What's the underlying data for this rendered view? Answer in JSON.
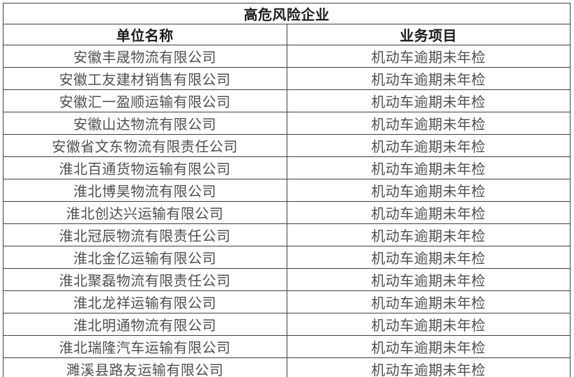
{
  "table": {
    "title": "高危风险企业",
    "columns": [
      "单位名称",
      "业务项目"
    ],
    "rows": [
      {
        "name": "安徽丰晟物流有限公司",
        "project": "机动车逾期未年检"
      },
      {
        "name": "安徽工友建材销售有限公司",
        "project": "机动车逾期未年检"
      },
      {
        "name": "安徽汇一盈顺运输有限公司",
        "project": "机动车逾期未年检"
      },
      {
        "name": "安徽山达物流有限公司",
        "project": "机动车逾期未年检"
      },
      {
        "name": "安徽省文东物流有限责任公司",
        "project": "机动车逾期未年检"
      },
      {
        "name": "淮北百通货物运输有限公司",
        "project": "机动车逾期未年检"
      },
      {
        "name": "淮北博昊物流有限公司",
        "project": "机动车逾期未年检"
      },
      {
        "name": "淮北创达兴运输有限公司",
        "project": "机动车逾期未年检"
      },
      {
        "name": "淮北冠辰物流有限责任公司",
        "project": "机动车逾期未年检"
      },
      {
        "name": "淮北金亿运输有限公司",
        "project": "机动车逾期未年检"
      },
      {
        "name": "淮北聚磊物流有限责任公司",
        "project": "机动车逾期未年检"
      },
      {
        "name": "淮北龙祥运输有限公司",
        "project": "机动车逾期未年检"
      },
      {
        "name": "淮北明通物流有限公司",
        "project": "机动车逾期未年检"
      },
      {
        "name": "淮北瑞隆汽车运输有限公司",
        "project": "机动车逾期未年检"
      },
      {
        "name": "濉溪县路友运输有限公司",
        "project": "机动车逾期未年检"
      }
    ]
  },
  "colors": {
    "background": "#ffffff",
    "border": "#3f3f3f",
    "heading_text": "#1a1a1a",
    "body_text": "#4f4f4f"
  }
}
